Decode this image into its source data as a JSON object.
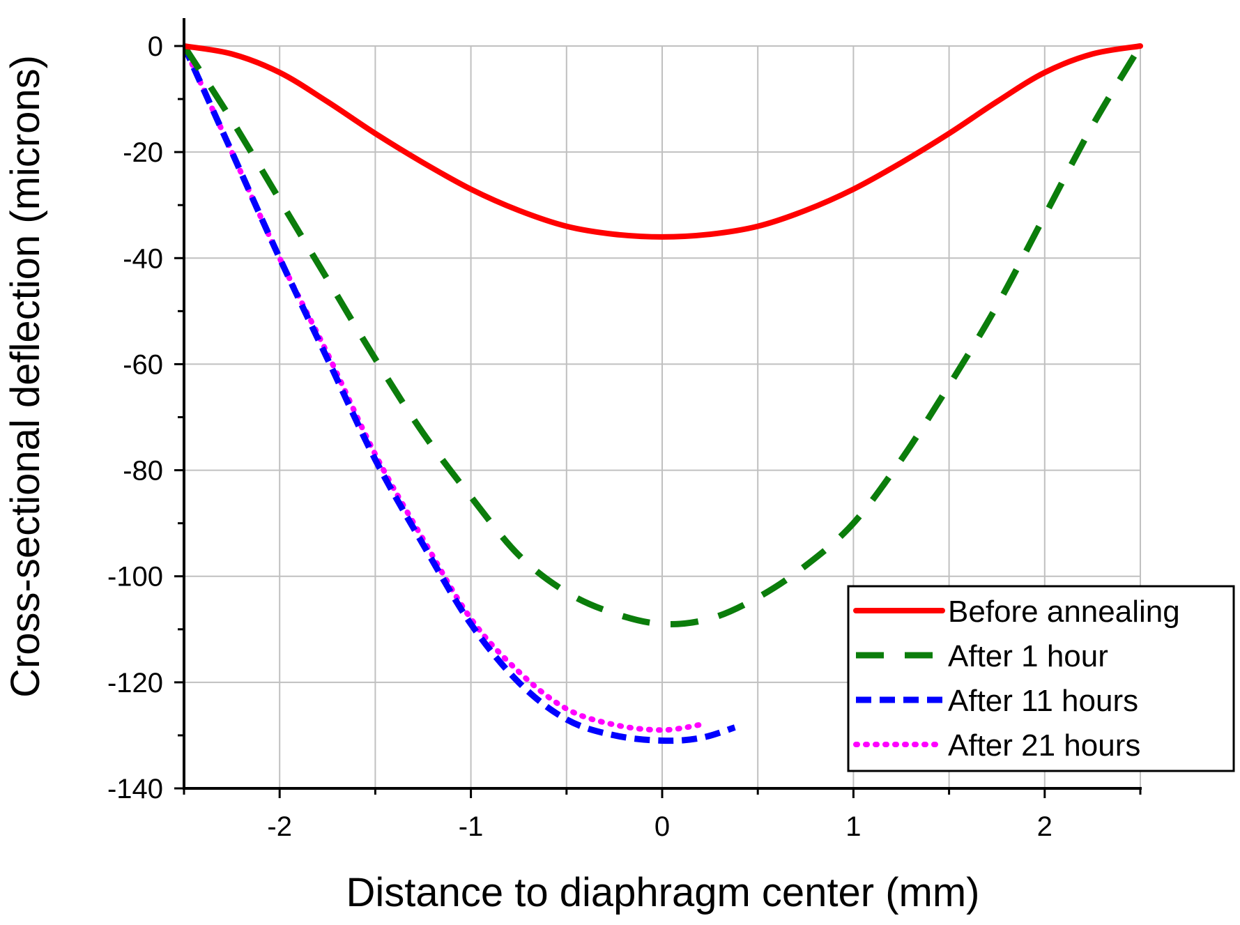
{
  "chart_data": {
    "type": "line",
    "title": "",
    "xlabel": "Distance to diaphragm center (mm)",
    "ylabel": "Cross-sectional deflection (microns)",
    "xlim": [
      -2.5,
      2.5
    ],
    "ylim": [
      -140,
      0
    ],
    "grid": true,
    "legend_position": "bottom-right",
    "x_ticks": [
      -2,
      -1,
      0,
      1,
      2
    ],
    "x_tick_labels": [
      "-2",
      "-1",
      "0",
      "1",
      "2"
    ],
    "y_ticks": [
      0,
      -20,
      -40,
      -60,
      -80,
      -100,
      -120,
      -140
    ],
    "y_tick_labels": [
      "0",
      "-20",
      "-40",
      "-60",
      "-80",
      "-100",
      "-120",
      "-140"
    ],
    "series": [
      {
        "name": "Before annealing",
        "color": "#ff0000",
        "style": "solid",
        "x": [
          -2.5,
          -2.25,
          -2.0,
          -1.75,
          -1.5,
          -1.25,
          -1.0,
          -0.75,
          -0.5,
          -0.25,
          0.0,
          0.25,
          0.5,
          0.75,
          1.0,
          1.25,
          1.5,
          1.75,
          2.0,
          2.25,
          2.5
        ],
        "y": [
          0,
          -1.5,
          -5,
          -10.5,
          -16.5,
          -22,
          -27,
          -31,
          -34,
          -35.5,
          -36,
          -35.5,
          -34,
          -31,
          -27,
          -22,
          -16.5,
          -10.5,
          -5,
          -1.5,
          0
        ]
      },
      {
        "name": "After 1 hour",
        "color": "#0b7d0b",
        "style": "dashed",
        "x": [
          -2.5,
          -2.25,
          -2.0,
          -1.75,
          -1.5,
          -1.25,
          -1.0,
          -0.75,
          -0.5,
          -0.25,
          0.0,
          0.25,
          0.5,
          0.75,
          1.0,
          1.25,
          1.5,
          1.75,
          2.0,
          2.25,
          2.5
        ],
        "y": [
          0,
          -14,
          -29,
          -44,
          -59,
          -73,
          -85,
          -96,
          -103,
          -107,
          -109,
          -108,
          -104,
          -98,
          -90,
          -78,
          -64,
          -49,
          -32,
          -15,
          0
        ]
      },
      {
        "name": "After 11 hours",
        "color": "#0000ff",
        "style": "dashed-short",
        "x": [
          -2.5,
          -2.25,
          -2.0,
          -1.75,
          -1.5,
          -1.25,
          -1.0,
          -0.75,
          -0.5,
          -0.25,
          0.0,
          0.2,
          0.38
        ],
        "y": [
          0,
          -20,
          -40,
          -59,
          -78,
          -94,
          -109,
          -120,
          -127,
          -130,
          -131,
          -130.5,
          -128.5
        ]
      },
      {
        "name": "After 21 hours",
        "color": "#ff00ff",
        "style": "dotted",
        "x": [
          -2.5,
          -2.25,
          -2.0,
          -1.75,
          -1.5,
          -1.25,
          -1.0,
          -0.75,
          -0.5,
          -0.25,
          0.0,
          0.2
        ],
        "y": [
          0,
          -20,
          -40,
          -58,
          -77,
          -93,
          -108,
          -118,
          -125,
          -128,
          -129,
          -128
        ]
      }
    ]
  }
}
